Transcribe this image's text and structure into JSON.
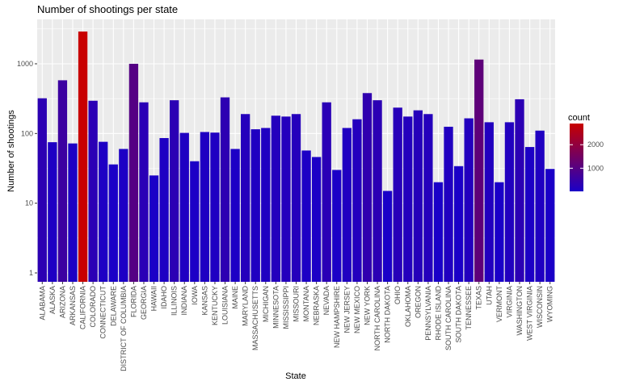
{
  "chart_data": {
    "type": "bar",
    "title": "Number of shootings per state",
    "xlabel": "State",
    "ylabel": "Number of shootings",
    "y_scale": "log10",
    "ylim": [
      1,
      4000
    ],
    "y_ticks": [
      1,
      10,
      100,
      1000
    ],
    "y_tick_labels": [
      "1",
      "10",
      "100",
      "1000"
    ],
    "grid": true,
    "legend": {
      "title": "count",
      "placement": "right",
      "ticks": [
        1000,
        2000
      ],
      "tick_labels": [
        "1000",
        "2000"
      ],
      "range": [
        15,
        2900
      ],
      "color_low": "#1a00c8",
      "color_high": "#c80000"
    },
    "categories": [
      "ALABAMA",
      "ALASKA",
      "ARIZONA",
      "ARKANSAS",
      "CALIFORNIA",
      "COLORADO",
      "CONNECTICUT",
      "DELAWARE",
      "DISTRICT OF COLUMBIA",
      "FLORIDA",
      "GEORGIA",
      "HAWAII",
      "IDAHO",
      "ILLINOIS",
      "INDIANA",
      "IOWA",
      "KANSAS",
      "KENTUCKY",
      "LOUISIANA",
      "MAINE",
      "MARYLAND",
      "MASSACHUSETTS",
      "MICHIGAN",
      "MINNESOTA",
      "MISSISSIPPI",
      "MISSOURI",
      "MONTANA",
      "NEBRASKA",
      "NEVADA",
      "NEW HAMPSHIRE",
      "NEW JERSEY",
      "NEW MEXICO",
      "NEW YORK",
      "NORTH CAROLINA",
      "NORTH DAKOTA",
      "OHIO",
      "OKLAHOMA",
      "OREGON",
      "PENNSYLVANIA",
      "RHODE ISLAND",
      "SOUTH CAROLINA",
      "SOUTH DAKOTA",
      "TENNESSEE",
      "TEXAS",
      "UTAH",
      "VERMONT",
      "VIRGINIA",
      "WASHINGTON",
      "WEST VIRGINIA",
      "WISCONSIN",
      "WYOMING"
    ],
    "values": [
      320,
      75,
      580,
      72,
      2900,
      295,
      76,
      36,
      60,
      1000,
      280,
      25,
      86,
      300,
      102,
      40,
      105,
      103,
      330,
      60,
      190,
      115,
      120,
      180,
      175,
      190,
      57,
      46,
      280,
      30,
      120,
      160,
      380,
      300,
      15,
      235,
      175,
      215,
      190,
      20,
      125,
      34,
      165,
      1150,
      145,
      20,
      145,
      310,
      64,
      110,
      31
    ]
  }
}
